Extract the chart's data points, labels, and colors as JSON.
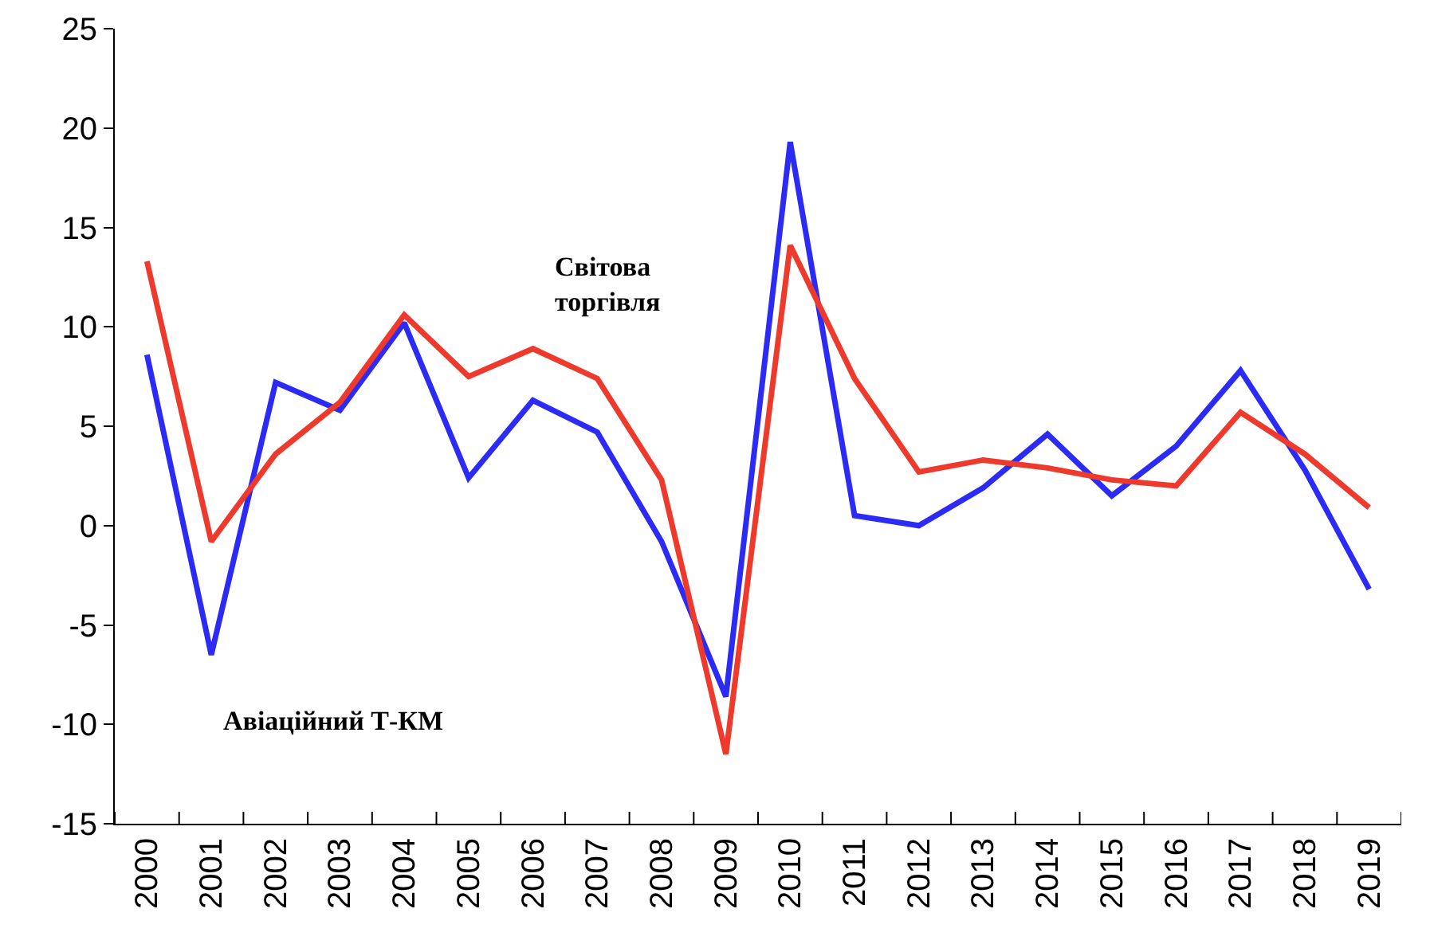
{
  "chart_data": {
    "type": "line",
    "categories": [
      "2000",
      "2001",
      "2002",
      "2003",
      "2004",
      "2005",
      "2006",
      "2007",
      "2008",
      "2009",
      "2010",
      "2011",
      "2012",
      "2013",
      "2014",
      "2015",
      "2016",
      "2017",
      "2018",
      "2019"
    ],
    "series": [
      {
        "name": "Авіаційний Т-КМ",
        "color": "#2b2bf5",
        "values": [
          8.6,
          -6.5,
          7.2,
          5.8,
          10.2,
          2.4,
          6.3,
          4.7,
          -0.8,
          -8.6,
          19.3,
          0.5,
          0,
          1.9,
          4.6,
          1.5,
          4.0,
          7.8,
          2.8,
          -3.2
        ]
      },
      {
        "name": "Світова торгівля",
        "color": "#ee3a2c",
        "values": [
          13.3,
          -0.8,
          3.6,
          6.2,
          10.6,
          7.5,
          8.9,
          7.4,
          2.3,
          -11.5,
          14.1,
          7.4,
          2.7,
          3.3,
          2.9,
          2.3,
          2.0,
          5.7,
          3.6,
          0.9
        ]
      }
    ],
    "ylim": [
      -15,
      25
    ],
    "yticks": [
      -15,
      -10,
      -5,
      0,
      5,
      10,
      15,
      20,
      25
    ],
    "grid": false,
    "legend": false,
    "marker": "none",
    "line_style": "solid"
  }
}
